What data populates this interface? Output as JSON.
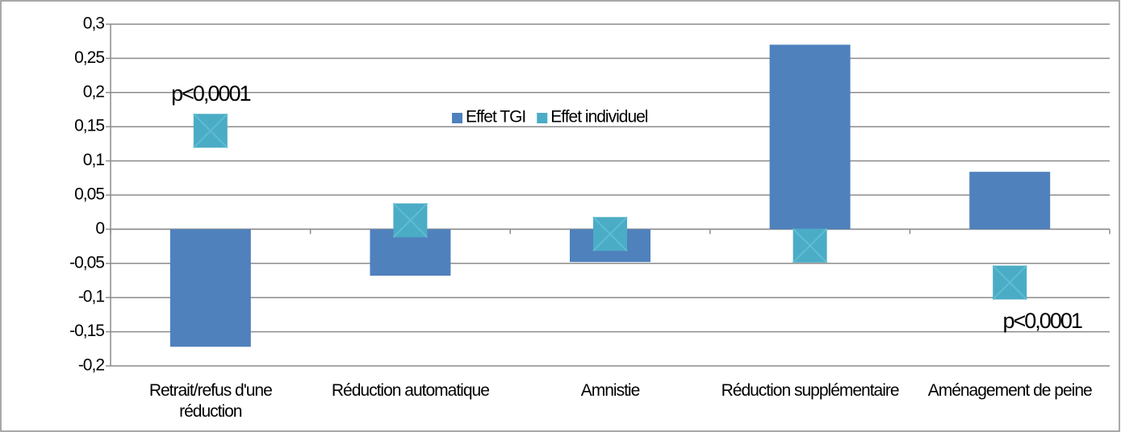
{
  "chart_data": {
    "type": "bar",
    "categories": [
      "Retrait/refus d'une réduction",
      "Réduction automatique",
      "Amnistie",
      "Réduction supplémentaire",
      "Aménagement de peine"
    ],
    "series": [
      {
        "name": "Effet TGI",
        "color": "#4f81bd",
        "type": "bar",
        "values": [
          -0.172,
          -0.068,
          -0.048,
          0.27,
          0.084
        ]
      },
      {
        "name": "Effet individuel",
        "color": "#4bacc6",
        "type": "marker",
        "values": [
          0.144,
          0.013,
          -0.007,
          -0.024,
          -0.078
        ]
      }
    ],
    "ylim": [
      -0.2,
      0.3
    ],
    "yticks": [
      {
        "value": -0.2,
        "label": "-0,2"
      },
      {
        "value": -0.15,
        "label": "-0,15"
      },
      {
        "value": -0.1,
        "label": "-0,1"
      },
      {
        "value": -0.05,
        "label": "-0,05"
      },
      0,
      {
        "value": 0.05,
        "label": "0,05"
      },
      {
        "value": 0.1,
        "label": "0,1"
      },
      {
        "value": 0.15,
        "label": "0,15"
      },
      {
        "value": 0.2,
        "label": "0,2"
      },
      {
        "value": 0.25,
        "label": "0,25"
      },
      {
        "value": 0.3,
        "label": "0,3"
      }
    ],
    "grid": true,
    "legend": "top",
    "annotations": [
      "p<0,0001",
      "p<0,0001"
    ]
  }
}
